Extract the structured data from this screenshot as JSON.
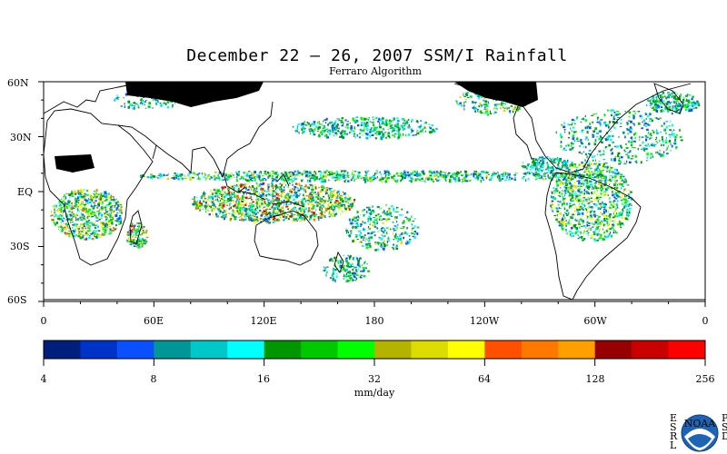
{
  "title": "December 22 – 26, 2007 SSM/I Rainfall",
  "subtitle": "Ferraro Algorithm",
  "map": {
    "lat_labels": [
      "60N",
      "30N",
      "EQ",
      "30S",
      "60S"
    ],
    "lon_labels": [
      "0",
      "60E",
      "120E",
      "180",
      "120W",
      "60W",
      "0"
    ]
  },
  "colorbar": {
    "unit_label": "mm/day",
    "tick_labels": [
      "4",
      "8",
      "16",
      "32",
      "64",
      "128",
      "256"
    ],
    "colors": [
      "#001e7c",
      "#0032c8",
      "#0a50ff",
      "#009696",
      "#00c8c8",
      "#00ffff",
      "#009600",
      "#00c800",
      "#00ff00",
      "#b4b400",
      "#dcdc00",
      "#ffff00",
      "#ff5000",
      "#ff7800",
      "#ffa000",
      "#960000",
      "#c80000",
      "#ff0000"
    ]
  },
  "logo": {
    "left_letters": "ESRL",
    "right_letters": "PSD",
    "badge": "NOAA"
  }
}
